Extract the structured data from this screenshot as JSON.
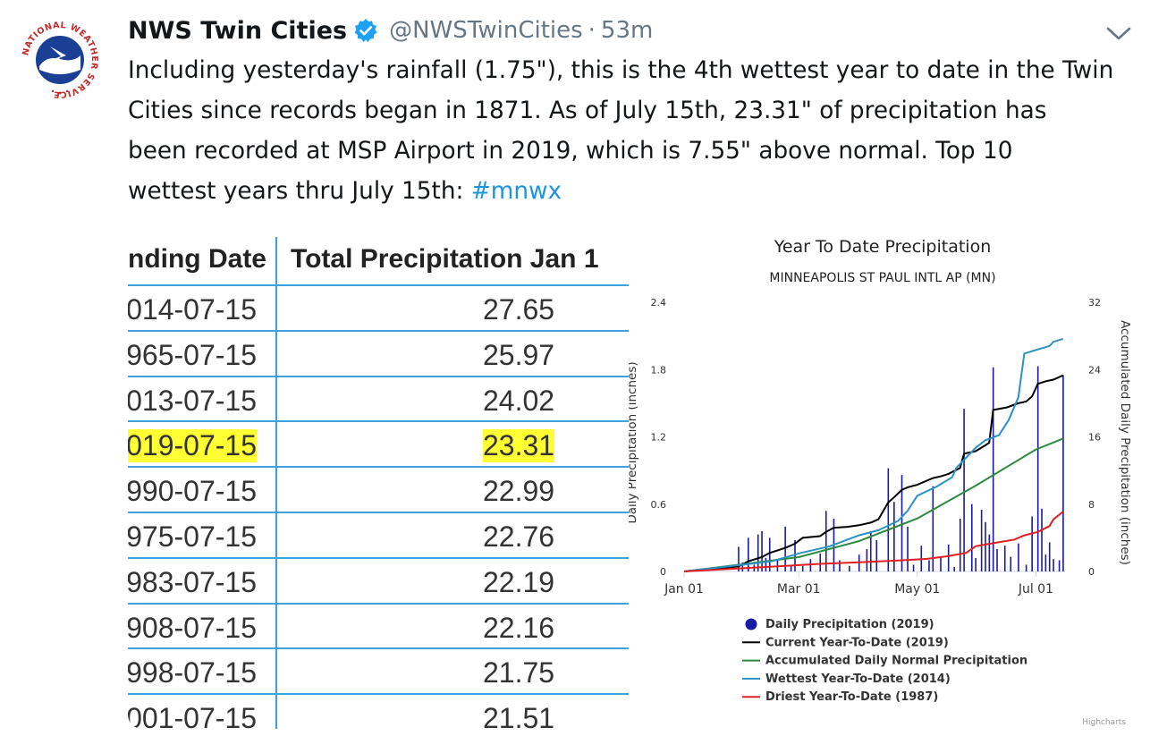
{
  "tweet": {
    "display_name": "NWS Twin Cities",
    "handle": "@NWSTwinCities",
    "separator": "·",
    "time": "53m",
    "text_before_tag": "Including yesterday's rainfall (1.75\"), this is the 4th wettest year to date in the Twin\nCities since records began in 1871. As of July 15th, 23.31\" of precipitation has\nbeen recorded at MSP Airport in 2019, which is 7.55\" above normal. Top 10\nwettest years thru July 15th: ",
    "hashtag": "#mnwx",
    "avatar_icon": "nws-logo-icon",
    "avatar_ring_text": "NATIONAL WEATHER SERVICE",
    "verified_icon": "verified-badge-icon",
    "menu_icon": "chevron-down-icon"
  },
  "table": {
    "columns": [
      "nding Date",
      "Total Precipitation Jan 1"
    ],
    "highlight_color": "#ffff33",
    "border_color": "#3fa2de",
    "rows": [
      {
        "date": "014-07-15",
        "value": "27.65",
        "highlight": false
      },
      {
        "date": "965-07-15",
        "value": "25.97",
        "highlight": false
      },
      {
        "date": "013-07-15",
        "value": "24.02",
        "highlight": false
      },
      {
        "date": "019-07-15",
        "value": "23.31",
        "highlight": true
      },
      {
        "date": "990-07-15",
        "value": "22.99",
        "highlight": false
      },
      {
        "date": "975-07-15",
        "value": "22.76",
        "highlight": false
      },
      {
        "date": "983-07-15",
        "value": "22.19",
        "highlight": false
      },
      {
        "date": "908-07-15",
        "value": "22.16",
        "highlight": false
      },
      {
        "date": "998-07-15",
        "value": "21.75",
        "highlight": false
      },
      {
        "date": "001-07-15",
        "value": "21.51",
        "highlight": false
      }
    ]
  },
  "chart_data": {
    "type": "line",
    "title": "Year To Date Precipitation",
    "subtitle": "MINNEAPOLIS ST PAUL INTL AP (MN)",
    "ylabel_left": "Daily Precipitation (inches)",
    "ylabel_right": "Accumulated Daily Precipitation (inches)",
    "x_domain": [
      0,
      196
    ],
    "x_ticks": [
      {
        "day": 0,
        "label": "Jan 01"
      },
      {
        "day": 59,
        "label": "Mar 01"
      },
      {
        "day": 120,
        "label": "May 01"
      },
      {
        "day": 181,
        "label": "Jul 01"
      }
    ],
    "y_left": {
      "ticks": [
        "0",
        "0.6",
        "1.2",
        "1.8",
        "2.4"
      ],
      "ylim": [
        0,
        2.4
      ]
    },
    "y_right": {
      "ticks": [
        "0",
        "8",
        "16",
        "24",
        "32"
      ],
      "ylim": [
        0,
        32
      ]
    },
    "credit": "Highcharts",
    "bars": {
      "name": "Daily Precipitation (2019)",
      "color": "#1a1aa6",
      "points": [
        [
          28,
          0.22
        ],
        [
          30,
          0.08
        ],
        [
          33,
          0.3
        ],
        [
          36,
          0.06
        ],
        [
          38,
          0.33
        ],
        [
          40,
          0.36
        ],
        [
          42,
          0.12
        ],
        [
          44,
          0.3
        ],
        [
          48,
          0.1
        ],
        [
          52,
          0.4
        ],
        [
          55,
          0.05
        ],
        [
          57,
          0.28
        ],
        [
          61,
          0.05
        ],
        [
          65,
          0.11
        ],
        [
          70,
          0.16
        ],
        [
          73,
          0.54
        ],
        [
          77,
          0.47
        ],
        [
          80,
          0.1
        ],
        [
          85,
          0.05
        ],
        [
          90,
          0.15
        ],
        [
          94,
          0.2
        ],
        [
          96,
          0.36
        ],
        [
          99,
          0.28
        ],
        [
          105,
          0.92
        ],
        [
          108,
          0.62
        ],
        [
          112,
          0.86
        ],
        [
          115,
          0.4
        ],
        [
          118,
          0.06
        ],
        [
          122,
          0.23
        ],
        [
          126,
          0.1
        ],
        [
          128,
          0.76
        ],
        [
          132,
          0.13
        ],
        [
          136,
          0.24
        ],
        [
          139,
          0.04
        ],
        [
          142,
          0.47
        ],
        [
          144,
          1.45
        ],
        [
          148,
          0.6
        ],
        [
          150,
          0.12
        ],
        [
          153,
          0.55
        ],
        [
          155,
          0.44
        ],
        [
          157,
          0.33
        ],
        [
          159,
          1.82
        ],
        [
          161,
          0.2
        ],
        [
          165,
          0.23
        ],
        [
          168,
          0.13
        ],
        [
          172,
          0.25
        ],
        [
          176,
          0.06
        ],
        [
          179,
          0.49
        ],
        [
          182,
          1.83
        ],
        [
          184,
          0.56
        ],
        [
          186,
          0.15
        ],
        [
          188,
          0.26
        ],
        [
          190,
          0.11
        ],
        [
          193,
          0.1
        ],
        [
          195,
          1.75
        ]
      ]
    },
    "series": [
      {
        "name": "Current Year-To-Date (2019)",
        "color": "#000000",
        "points": [
          [
            0,
            0
          ],
          [
            28,
            0.6
          ],
          [
            33,
            1.2
          ],
          [
            40,
            1.7
          ],
          [
            44,
            2.2
          ],
          [
            52,
            2.8
          ],
          [
            57,
            3.3
          ],
          [
            61,
            4
          ],
          [
            70,
            4.2
          ],
          [
            73,
            4.7
          ],
          [
            77,
            5.2
          ],
          [
            84,
            5.3
          ],
          [
            90,
            5.5
          ],
          [
            96,
            5.8
          ],
          [
            100,
            6.2
          ],
          [
            105,
            8.2
          ],
          [
            108,
            8.8
          ],
          [
            112,
            9.7
          ],
          [
            115,
            10
          ],
          [
            120,
            10.3
          ],
          [
            128,
            11.1
          ],
          [
            132,
            11.3
          ],
          [
            136,
            11.6
          ],
          [
            142,
            12.3
          ],
          [
            144,
            14
          ],
          [
            150,
            14.3
          ],
          [
            155,
            15
          ],
          [
            157,
            15.3
          ],
          [
            159,
            19.2
          ],
          [
            166,
            19.5
          ],
          [
            172,
            20
          ],
          [
            176,
            20.2
          ],
          [
            179,
            20.8
          ],
          [
            182,
            22.3
          ],
          [
            186,
            22.6
          ],
          [
            190,
            22.8
          ],
          [
            195,
            23.31
          ]
        ]
      },
      {
        "name": "Accumulated Daily Normal Precipitation",
        "color": "#2b8a3e",
        "points": [
          [
            0,
            0
          ],
          [
            30,
            0.85
          ],
          [
            59,
            1.7
          ],
          [
            90,
            3.6
          ],
          [
            120,
            6.3
          ],
          [
            150,
            10.2
          ],
          [
            181,
            14.5
          ],
          [
            195,
            15.8
          ]
        ]
      },
      {
        "name": "Wettest Year-To-Date (2014)",
        "color": "#2a92c4",
        "points": [
          [
            0,
            0
          ],
          [
            30,
            0.8
          ],
          [
            45,
            1.2
          ],
          [
            60,
            2.2
          ],
          [
            75,
            3
          ],
          [
            90,
            4.3
          ],
          [
            100,
            4.9
          ],
          [
            110,
            6
          ],
          [
            115,
            7.2
          ],
          [
            120,
            9
          ],
          [
            130,
            10.1
          ],
          [
            138,
            11.2
          ],
          [
            140,
            12.3
          ],
          [
            150,
            14.7
          ],
          [
            155,
            15.6
          ],
          [
            162,
            16.2
          ],
          [
            167,
            18
          ],
          [
            172,
            20.7
          ],
          [
            175,
            25.9
          ],
          [
            182,
            26.4
          ],
          [
            188,
            26.8
          ],
          [
            190,
            27.3
          ],
          [
            195,
            27.65
          ]
        ]
      },
      {
        "name": "Driest Year-To-Date (1987)",
        "color": "#e02020",
        "points": [
          [
            0,
            0
          ],
          [
            40,
            0.5
          ],
          [
            70,
            0.9
          ],
          [
            90,
            1.1
          ],
          [
            110,
            1.3
          ],
          [
            125,
            1.5
          ],
          [
            135,
            1.8
          ],
          [
            145,
            2.2
          ],
          [
            150,
            3
          ],
          [
            160,
            3.4
          ],
          [
            170,
            3.8
          ],
          [
            175,
            4.3
          ],
          [
            182,
            4.7
          ],
          [
            188,
            5.4
          ],
          [
            190,
            6.2
          ],
          [
            195,
            7.1
          ]
        ]
      }
    ]
  }
}
